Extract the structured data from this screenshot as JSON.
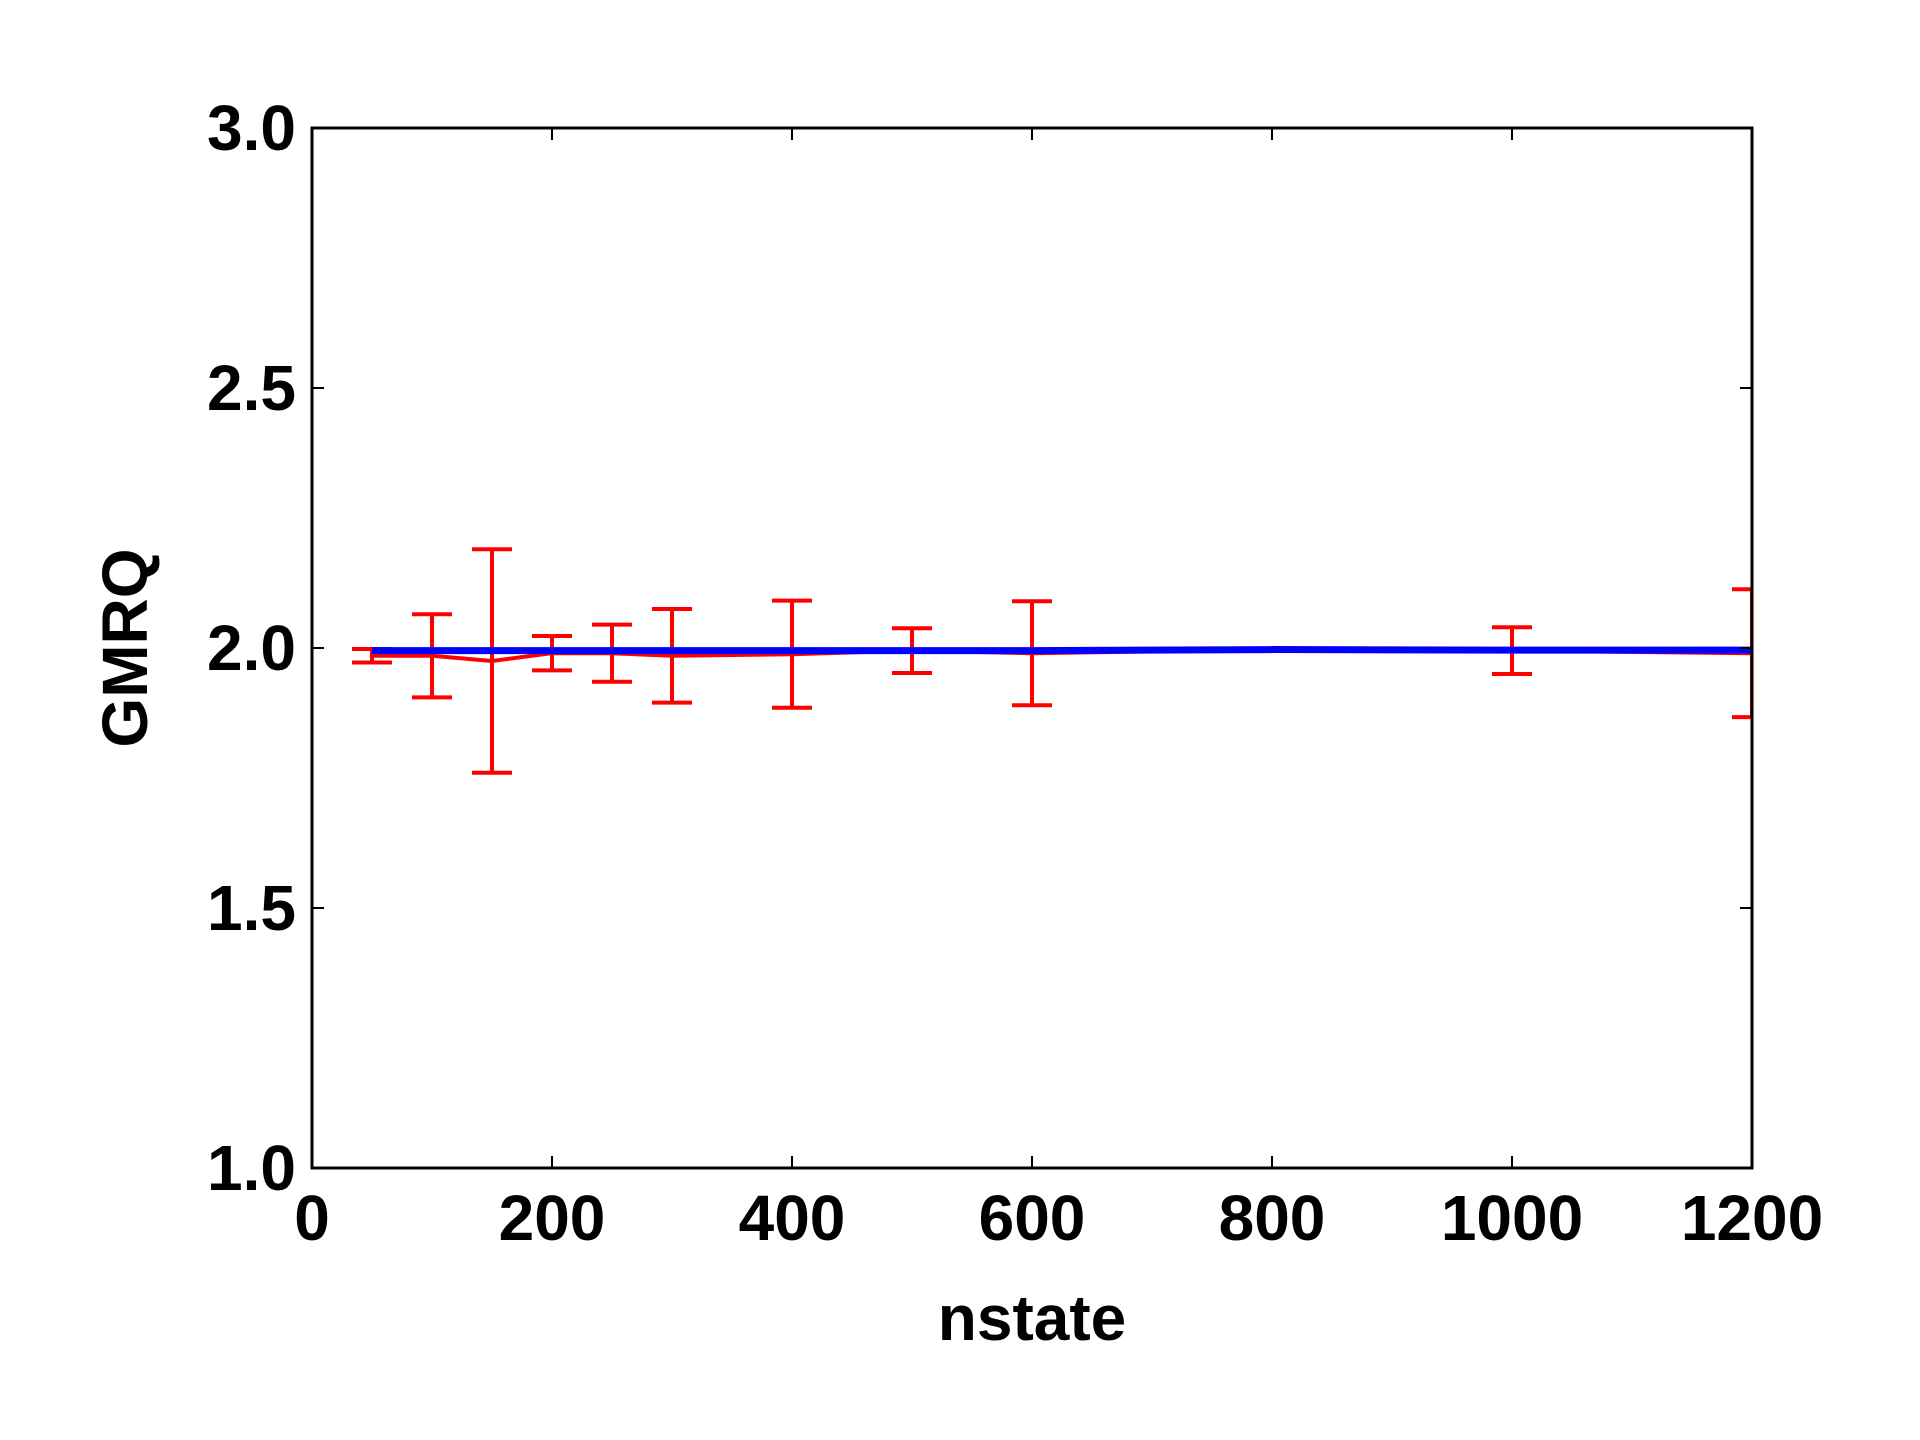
{
  "chart_data": {
    "type": "line",
    "xlabel": "nstate",
    "ylabel": "GMRQ",
    "xlim": [
      0,
      1200
    ],
    "ylim": [
      1.0,
      3.0
    ],
    "xticks": [
      "0",
      "200",
      "400",
      "600",
      "800",
      "1000",
      "1200"
    ],
    "yticks": [
      "1.0",
      "1.5",
      "2.0",
      "2.5",
      "3.0"
    ],
    "grid": false,
    "legend": "none",
    "series": [
      {
        "color": "#ff0000",
        "style": "line-with-errorbars",
        "points": [
          {
            "x": 50,
            "y": 1.985,
            "err": 0.013
          },
          {
            "x": 100,
            "y": 1.985,
            "err": 0.08
          },
          {
            "x": 150,
            "y": 1.975,
            "err": 0.215
          },
          {
            "x": 200,
            "y": 1.99,
            "err": 0.033
          },
          {
            "x": 250,
            "y": 1.99,
            "err": 0.055
          },
          {
            "x": 300,
            "y": 1.985,
            "err": 0.09
          },
          {
            "x": 400,
            "y": 1.988,
            "err": 0.103
          },
          {
            "x": 500,
            "y": 1.995,
            "err": 0.043
          },
          {
            "x": 600,
            "y": 1.99,
            "err": 0.1
          },
          {
            "x": 800,
            "y": 1.997,
            "err": 0.0
          },
          {
            "x": 1000,
            "y": 1.995,
            "err": 0.045
          },
          {
            "x": 1200,
            "y": 1.99,
            "err": 0.123
          }
        ]
      },
      {
        "color": "#0000ff",
        "style": "line",
        "points": [
          {
            "x": 50,
            "y": 1.995
          },
          {
            "x": 100,
            "y": 1.995
          },
          {
            "x": 150,
            "y": 1.995
          },
          {
            "x": 200,
            "y": 1.995
          },
          {
            "x": 250,
            "y": 1.995
          },
          {
            "x": 300,
            "y": 1.995
          },
          {
            "x": 400,
            "y": 1.995
          },
          {
            "x": 500,
            "y": 1.995
          },
          {
            "x": 600,
            "y": 1.995
          },
          {
            "x": 800,
            "y": 1.997
          },
          {
            "x": 1000,
            "y": 1.996
          },
          {
            "x": 1200,
            "y": 1.996
          }
        ]
      }
    ]
  }
}
